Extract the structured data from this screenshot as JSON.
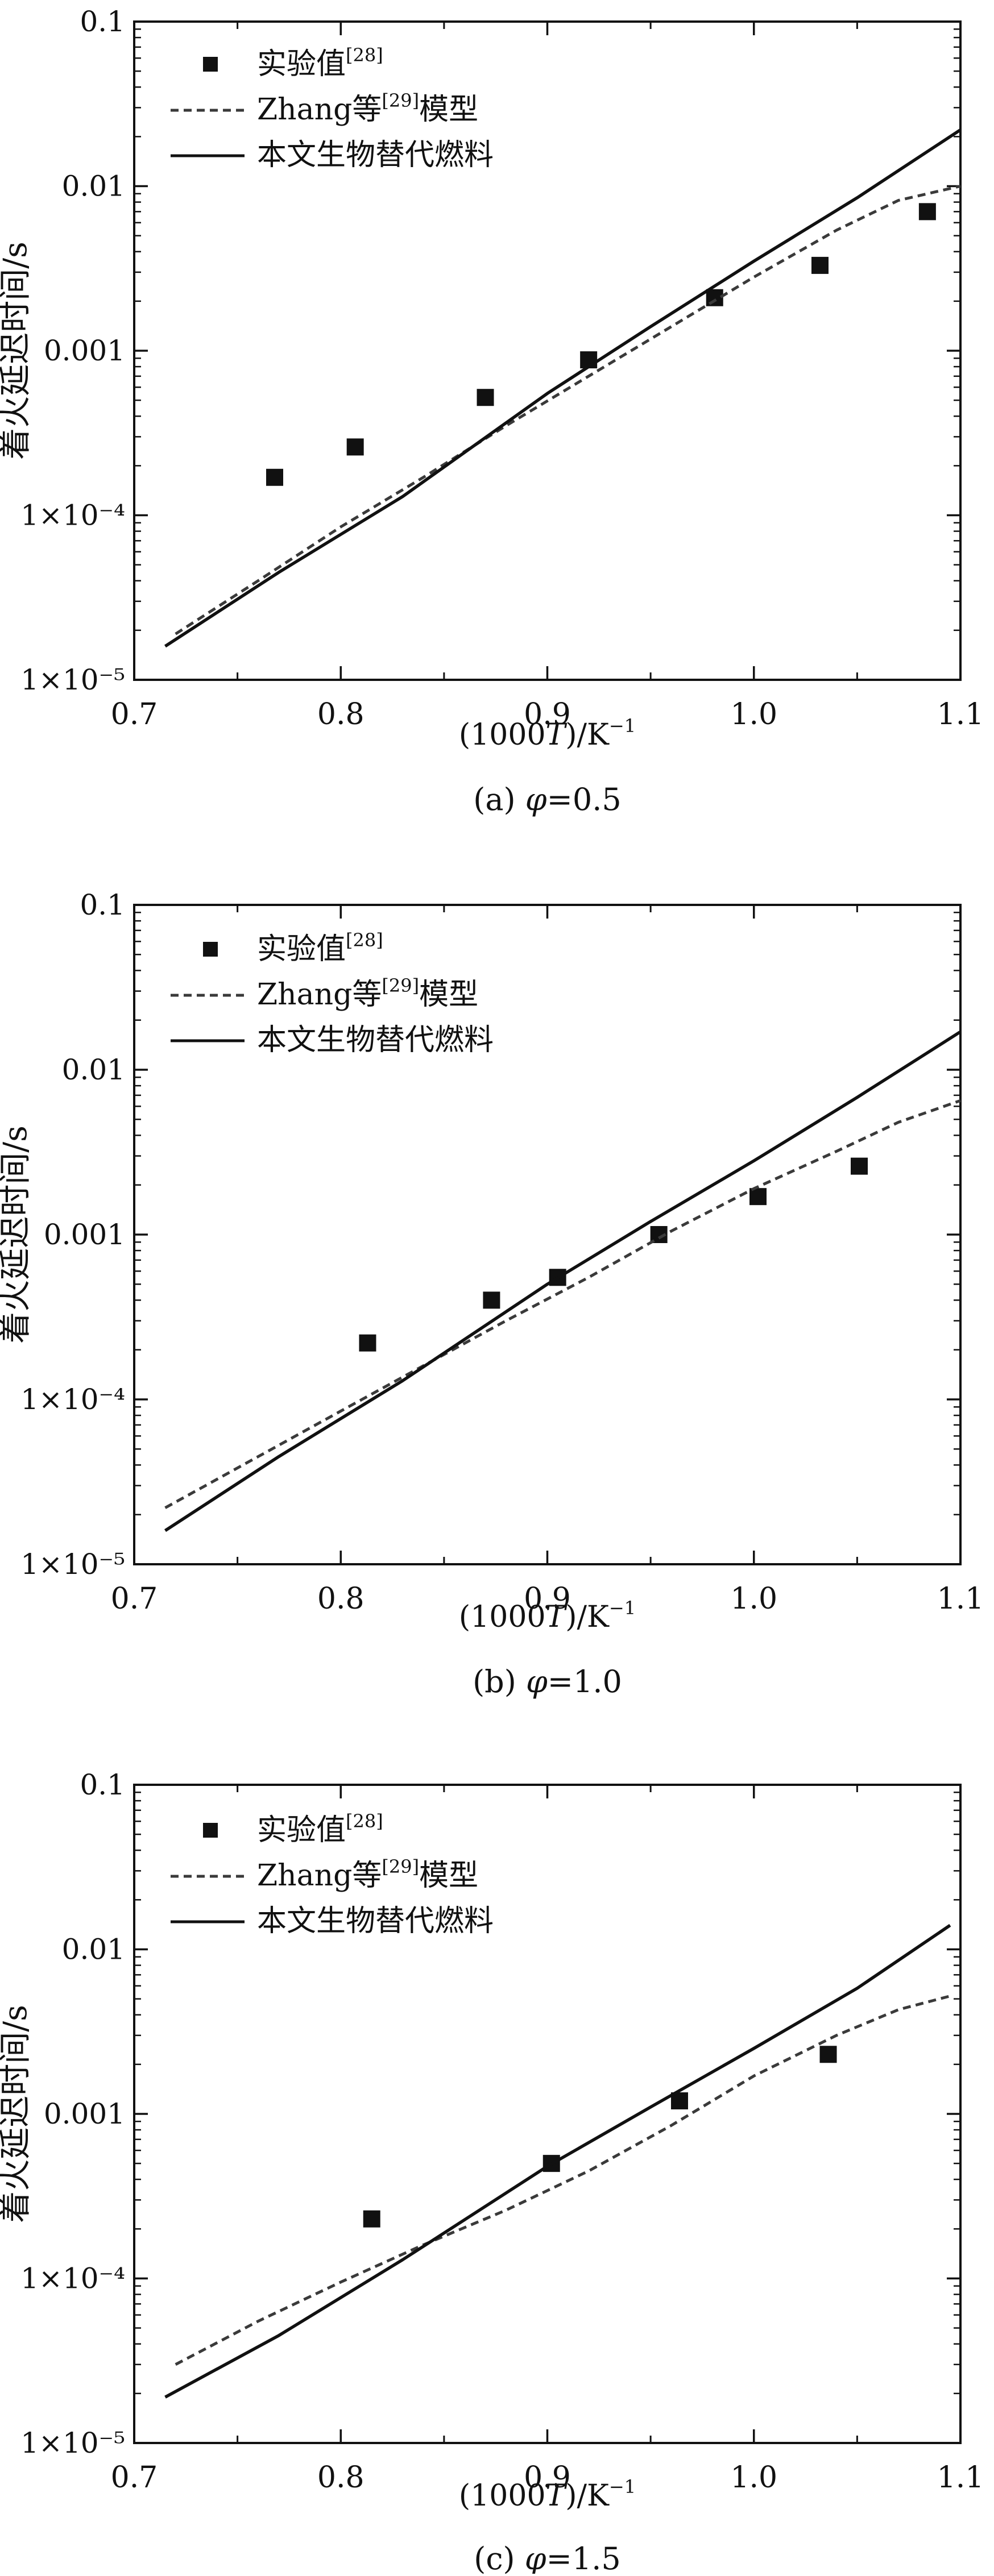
{
  "chart_data": [
    {
      "type": "line",
      "caption_prefix": "(a) ",
      "caption_symbol": "φ",
      "caption_value": "=0.5",
      "xlabel_main": "(1000",
      "xlabel_italic": "T",
      "xlabel_unit": ")/K",
      "xlabel_sup": "−1",
      "ylabel": "着火延迟时间/s",
      "xlim": [
        0.7,
        1.1
      ],
      "ylim": [
        1e-05,
        0.1
      ],
      "yscale": "log",
      "x_ticks": [
        "0.7",
        "0.8",
        "0.9",
        "1.0",
        "1.1"
      ],
      "y_ticks": [
        "1×10⁻⁵",
        "1×10⁻⁴",
        "0.001",
        "0.01",
        "0.1"
      ],
      "legend": [
        {
          "label": "实验值",
          "sup": "[28]",
          "suffix": "",
          "style": "marker"
        },
        {
          "label": "Zhang等",
          "sup": "[29]",
          "suffix": "模型",
          "style": "dashed"
        },
        {
          "label": "本文生物替代燃料",
          "sup": "",
          "suffix": "",
          "style": "solid"
        }
      ],
      "series": [
        {
          "name": "实验值[28]",
          "style": "marker",
          "x": [
            0.768,
            0.807,
            0.87,
            0.92,
            0.981,
            1.032,
            1.084
          ],
          "y": [
            0.00017,
            0.00026,
            0.00052,
            0.00088,
            0.0021,
            0.0033,
            0.007
          ]
        },
        {
          "name": "Zhang等[29]模型",
          "style": "dashed",
          "x": [
            0.72,
            0.76,
            0.8,
            0.84,
            0.88,
            0.92,
            0.96,
            1.0,
            1.04,
            1.07,
            1.1
          ],
          "y": [
            1.9e-05,
            4e-05,
            8.5e-05,
            0.00017,
            0.00035,
            0.0007,
            0.0014,
            0.0028,
            0.0054,
            0.0082,
            0.01
          ]
        },
        {
          "name": "本文生物替代燃料",
          "style": "solid",
          "x": [
            0.715,
            0.77,
            0.83,
            0.9,
            0.95,
            1.0,
            1.05,
            1.1
          ],
          "y": [
            1.6e-05,
            4.5e-05,
            0.00013,
            0.00055,
            0.0014,
            0.0035,
            0.0085,
            0.022
          ]
        }
      ]
    },
    {
      "type": "line",
      "caption_prefix": "(b) ",
      "caption_symbol": "φ",
      "caption_value": "=1.0",
      "xlabel_main": "(1000",
      "xlabel_italic": "T",
      "xlabel_unit": ")/K",
      "xlabel_sup": "−1",
      "ylabel": "着火延迟时间/s",
      "xlim": [
        0.7,
        1.1
      ],
      "ylim": [
        1e-05,
        0.1
      ],
      "yscale": "log",
      "x_ticks": [
        "0.7",
        "0.8",
        "0.9",
        "1.0",
        "1.1"
      ],
      "y_ticks": [
        "1×10⁻⁵",
        "1×10⁻⁴",
        "0.001",
        "0.01",
        "0.1"
      ],
      "legend": [
        {
          "label": "实验值",
          "sup": "[28]",
          "suffix": "",
          "style": "marker"
        },
        {
          "label": "Zhang等",
          "sup": "[29]",
          "suffix": "模型",
          "style": "dashed"
        },
        {
          "label": "本文生物替代燃料",
          "sup": "",
          "suffix": "",
          "style": "solid"
        }
      ],
      "series": [
        {
          "name": "实验值[28]",
          "style": "marker",
          "x": [
            0.813,
            0.873,
            0.905,
            0.954,
            1.002,
            1.051
          ],
          "y": [
            0.00022,
            0.0004,
            0.00055,
            0.001,
            0.0017,
            0.0026
          ]
        },
        {
          "name": "Zhang等[29]模型",
          "style": "dashed",
          "x": [
            0.715,
            0.76,
            0.8,
            0.84,
            0.88,
            0.92,
            0.96,
            1.0,
            1.04,
            1.07,
            1.1
          ],
          "y": [
            2.2e-05,
            4.5e-05,
            8.5e-05,
            0.00016,
            0.0003,
            0.00055,
            0.00105,
            0.0019,
            0.0032,
            0.0048,
            0.0065
          ]
        },
        {
          "name": "本文生物替代燃料",
          "style": "solid",
          "x": [
            0.715,
            0.77,
            0.83,
            0.9,
            0.95,
            1.0,
            1.05,
            1.1
          ],
          "y": [
            1.6e-05,
            4.5e-05,
            0.00013,
            0.0005,
            0.0012,
            0.0028,
            0.0068,
            0.017
          ]
        }
      ]
    },
    {
      "type": "line",
      "caption_prefix": "(c) ",
      "caption_symbol": "φ",
      "caption_value": "=1.5",
      "xlabel_main": "(1000",
      "xlabel_italic": "T",
      "xlabel_unit": ")/K",
      "xlabel_sup": "−1",
      "ylabel": "着火延迟时间/s",
      "xlim": [
        0.7,
        1.1
      ],
      "ylim": [
        1e-05,
        0.1
      ],
      "yscale": "log",
      "x_ticks": [
        "0.7",
        "0.8",
        "0.9",
        "1.0",
        "1.1"
      ],
      "y_ticks": [
        "1×10⁻⁵",
        "1×10⁻⁴",
        "0.001",
        "0.01",
        "0.1"
      ],
      "legend": [
        {
          "label": "实验值",
          "sup": "[28]",
          "suffix": "",
          "style": "marker"
        },
        {
          "label": "Zhang等",
          "sup": "[29]",
          "suffix": "模型",
          "style": "dashed"
        },
        {
          "label": "本文生物替代燃料",
          "sup": "",
          "suffix": "",
          "style": "solid"
        }
      ],
      "series": [
        {
          "name": "实验值[28]",
          "style": "marker",
          "x": [
            0.815,
            0.902,
            0.964,
            1.036
          ],
          "y": [
            0.00023,
            0.0005,
            0.0012,
            0.0023
          ]
        },
        {
          "name": "Zhang等[29]模型",
          "style": "dashed",
          "x": [
            0.72,
            0.76,
            0.8,
            0.84,
            0.88,
            0.92,
            0.96,
            1.0,
            1.04,
            1.07,
            1.095
          ],
          "y": [
            3e-05,
            5.5e-05,
            9.5e-05,
            0.00016,
            0.00026,
            0.00045,
            0.00085,
            0.0017,
            0.003,
            0.0043,
            0.0052
          ]
        },
        {
          "name": "本文生物替代燃料",
          "style": "solid",
          "x": [
            0.715,
            0.77,
            0.83,
            0.9,
            0.95,
            1.0,
            1.05,
            1.095
          ],
          "y": [
            1.9e-05,
            4.5e-05,
            0.00013,
            0.00048,
            0.0011,
            0.0025,
            0.0058,
            0.014
          ]
        }
      ]
    }
  ]
}
